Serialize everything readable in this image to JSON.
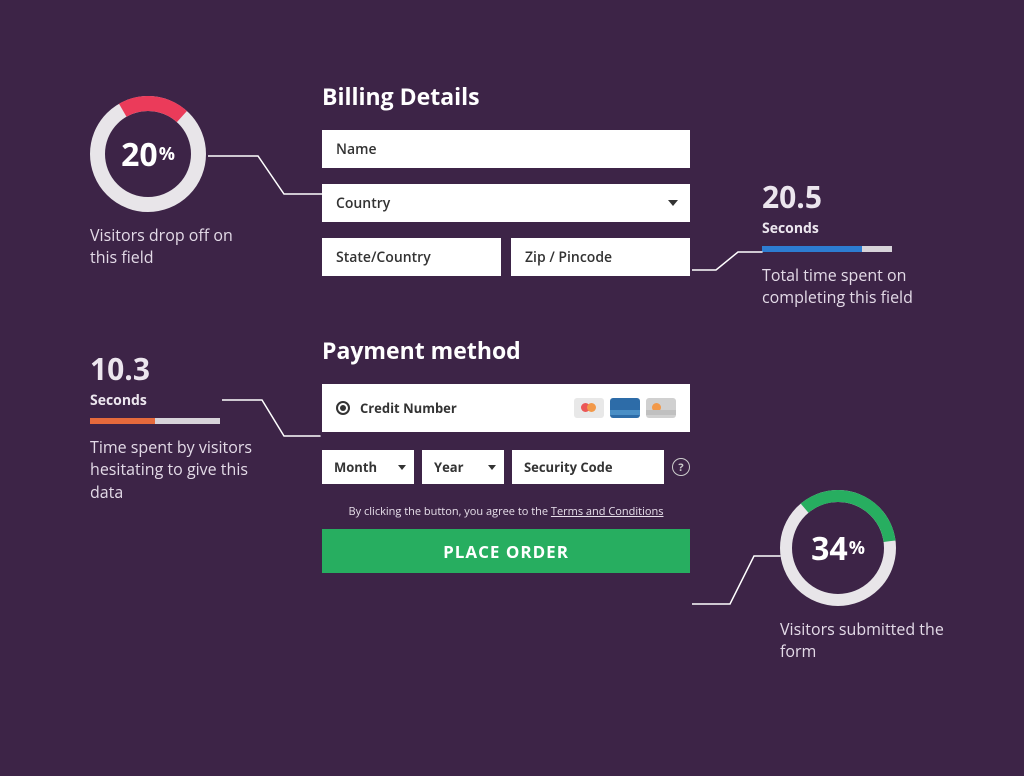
{
  "background_color": "#3d2447",
  "form": {
    "billing_title": "Billing Details",
    "name_label": "Name",
    "country_label": "Country",
    "state_label": "State/Country",
    "zip_label": "Zip / Pincode",
    "payment_title": "Payment method",
    "credit_label": "Credit Number",
    "month_label": "Month",
    "year_label": "Year",
    "security_label": "Security Code",
    "terms_prefix": "By clicking the button, you agree to the ",
    "terms_link": "Terms and Conditions",
    "cta_label": "PLACE ORDER",
    "cta_color": "#27ae60",
    "card_icon_colors": {
      "visa": "#2d6ca8",
      "grey": "#e8e8e8"
    }
  },
  "anno_dropoff": {
    "type": "donut",
    "value": 20,
    "unit": "%",
    "caption": "Visitors drop off on this field",
    "ring_bg": "#e8e5e9",
    "ring_fg": "#eb3b5a",
    "ring_thickness": 15,
    "ring_size": 116,
    "start_angle": -30
  },
  "anno_timespent": {
    "value": "20.5",
    "unit": "Seconds",
    "caption": "Total time spent on completing this field",
    "bar_pct": 77,
    "bar_color": "#2d7dd2"
  },
  "anno_hesitate": {
    "value": "10.3",
    "unit": "Seconds",
    "caption": "Time spent by visitors hesitating to give this data",
    "bar_pct": 50,
    "bar_color": "#e66a3c"
  },
  "anno_submitted": {
    "type": "donut",
    "value": 34,
    "unit": "%",
    "caption": "Visitors submitted the form",
    "ring_bg": "#e8e5e9",
    "ring_fg": "#27ae60",
    "ring_thickness": 12,
    "ring_size": 116,
    "start_angle": -40
  }
}
